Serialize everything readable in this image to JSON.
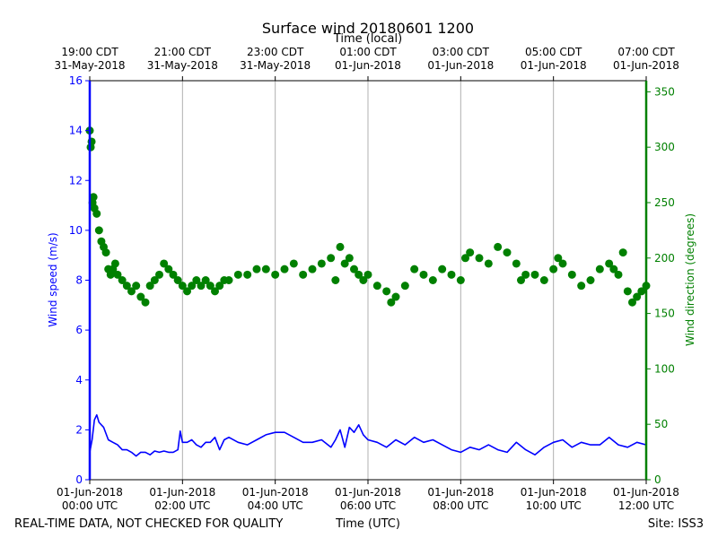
{
  "chart_data": {
    "type": "line+scatter",
    "title": "Surface wind 20180601 1200",
    "top_xlabel": "Time (local)",
    "xlabel": "Time (UTC)",
    "ylabel_left": "Wind speed (m/s)",
    "ylabel_right": "Wind direction (degrees)",
    "xlim_hours_utc": [
      0,
      12
    ],
    "ylim_left": [
      0,
      16
    ],
    "ylim_right": [
      0,
      360
    ],
    "left_ticks": [
      0,
      2,
      4,
      6,
      8,
      10,
      12,
      14,
      16
    ],
    "right_ticks": [
      0,
      50,
      100,
      150,
      200,
      250,
      300,
      350
    ],
    "bottom_ticks": [
      {
        "hour": 0,
        "line1": "01-Jun-2018",
        "line2": "00:00 UTC"
      },
      {
        "hour": 2,
        "line1": "01-Jun-2018",
        "line2": "02:00 UTC"
      },
      {
        "hour": 4,
        "line1": "01-Jun-2018",
        "line2": "04:00 UTC"
      },
      {
        "hour": 6,
        "line1": "01-Jun-2018",
        "line2": "06:00 UTC"
      },
      {
        "hour": 8,
        "line1": "01-Jun-2018",
        "line2": "08:00 UTC"
      },
      {
        "hour": 10,
        "line1": "01-Jun-2018",
        "line2": "10:00 UTC"
      },
      {
        "hour": 12,
        "line1": "01-Jun-2018",
        "line2": "12:00 UTC"
      }
    ],
    "top_ticks": [
      {
        "hour": 0,
        "line1": "19:00 CDT",
        "line2": "31-May-2018"
      },
      {
        "hour": 2,
        "line1": "21:00 CDT",
        "line2": "31-May-2018"
      },
      {
        "hour": 4,
        "line1": "23:00 CDT",
        "line2": "31-May-2018"
      },
      {
        "hour": 6,
        "line1": "01:00 CDT",
        "line2": "01-Jun-2018"
      },
      {
        "hour": 8,
        "line1": "03:00 CDT",
        "line2": "01-Jun-2018"
      },
      {
        "hour": 10,
        "line1": "05:00 CDT",
        "line2": "01-Jun-2018"
      },
      {
        "hour": 12,
        "line1": "07:00 CDT",
        "line2": "01-Jun-2018"
      }
    ],
    "series": [
      {
        "name": "Wind speed",
        "axis": "left",
        "style": "line",
        "color": "#0000ff",
        "x": [
          0.0,
          0.05,
          0.1,
          0.15,
          0.2,
          0.3,
          0.4,
          0.5,
          0.6,
          0.7,
          0.8,
          0.9,
          1.0,
          1.1,
          1.2,
          1.3,
          1.4,
          1.5,
          1.6,
          1.7,
          1.8,
          1.9,
          1.95,
          2.0,
          2.1,
          2.2,
          2.3,
          2.4,
          2.5,
          2.6,
          2.7,
          2.8,
          2.9,
          3.0,
          3.2,
          3.4,
          3.6,
          3.8,
          4.0,
          4.2,
          4.4,
          4.6,
          4.8,
          5.0,
          5.2,
          5.3,
          5.4,
          5.5,
          5.6,
          5.7,
          5.8,
          5.9,
          6.0,
          6.2,
          6.4,
          6.6,
          6.8,
          7.0,
          7.2,
          7.4,
          7.6,
          7.8,
          8.0,
          8.2,
          8.4,
          8.6,
          8.8,
          9.0,
          9.2,
          9.4,
          9.6,
          9.8,
          10.0,
          10.2,
          10.4,
          10.6,
          10.8,
          11.0,
          11.2,
          11.4,
          11.6,
          11.8,
          12.0
        ],
        "values": [
          1.1,
          1.6,
          2.4,
          2.6,
          2.3,
          2.1,
          1.6,
          1.5,
          1.4,
          1.2,
          1.2,
          1.1,
          0.95,
          1.1,
          1.1,
          1.0,
          1.15,
          1.1,
          1.15,
          1.1,
          1.1,
          1.2,
          1.95,
          1.5,
          1.5,
          1.6,
          1.4,
          1.3,
          1.5,
          1.5,
          1.7,
          1.2,
          1.6,
          1.7,
          1.5,
          1.4,
          1.6,
          1.8,
          1.9,
          1.9,
          1.7,
          1.5,
          1.5,
          1.6,
          1.3,
          1.6,
          2.0,
          1.3,
          2.1,
          1.9,
          2.2,
          1.8,
          1.6,
          1.5,
          1.3,
          1.6,
          1.4,
          1.7,
          1.5,
          1.6,
          1.4,
          1.2,
          1.1,
          1.3,
          1.2,
          1.4,
          1.2,
          1.1,
          1.5,
          1.2,
          1.0,
          1.3,
          1.5,
          1.6,
          1.3,
          1.5,
          1.4,
          1.4,
          1.7,
          1.4,
          1.3,
          1.5,
          1.4
        ]
      },
      {
        "name": "Wind direction",
        "axis": "right",
        "style": "points",
        "color": "#008000",
        "x": [
          0.0,
          0.02,
          0.04,
          0.06,
          0.08,
          0.1,
          0.15,
          0.2,
          0.25,
          0.3,
          0.35,
          0.4,
          0.45,
          0.5,
          0.55,
          0.6,
          0.7,
          0.8,
          0.9,
          1.0,
          1.1,
          1.2,
          1.3,
          1.4,
          1.5,
          1.6,
          1.7,
          1.8,
          1.9,
          2.0,
          2.1,
          2.2,
          2.3,
          2.4,
          2.5,
          2.6,
          2.7,
          2.8,
          2.9,
          3.0,
          3.2,
          3.4,
          3.6,
          3.8,
          4.0,
          4.2,
          4.4,
          4.6,
          4.8,
          5.0,
          5.2,
          5.3,
          5.4,
          5.5,
          5.6,
          5.7,
          5.8,
          5.9,
          6.0,
          6.2,
          6.4,
          6.5,
          6.6,
          6.8,
          7.0,
          7.2,
          7.4,
          7.6,
          7.8,
          8.0,
          8.1,
          8.2,
          8.4,
          8.6,
          8.8,
          9.0,
          9.2,
          9.3,
          9.4,
          9.6,
          9.8,
          10.0,
          10.1,
          10.2,
          10.4,
          10.6,
          10.8,
          11.0,
          11.2,
          11.3,
          11.4,
          11.5,
          11.6,
          11.7,
          11.8,
          11.9,
          12.0
        ],
        "values": [
          315,
          300,
          305,
          250,
          255,
          245,
          240,
          225,
          215,
          210,
          205,
          190,
          185,
          190,
          195,
          185,
          180,
          175,
          170,
          175,
          165,
          160,
          175,
          180,
          185,
          195,
          190,
          185,
          180,
          175,
          170,
          175,
          180,
          175,
          180,
          175,
          170,
          175,
          180,
          180,
          185,
          185,
          190,
          190,
          185,
          190,
          195,
          185,
          190,
          195,
          200,
          180,
          210,
          195,
          200,
          190,
          185,
          180,
          185,
          175,
          170,
          160,
          165,
          175,
          190,
          185,
          180,
          190,
          185,
          180,
          200,
          205,
          200,
          195,
          210,
          205,
          195,
          180,
          185,
          185,
          180,
          190,
          200,
          195,
          185,
          175,
          180,
          190,
          195,
          190,
          185,
          205,
          170,
          160,
          165,
          170,
          175
        ]
      }
    ],
    "footer_left": "REAL-TIME DATA, NOT CHECKED FOR QUALITY",
    "footer_center": "Time (UTC)",
    "footer_right": "Site: ISS3"
  },
  "colors": {
    "speed": "#0000ff",
    "direction": "#008000",
    "grid": "#b0b0b0",
    "frame": "#000000"
  }
}
